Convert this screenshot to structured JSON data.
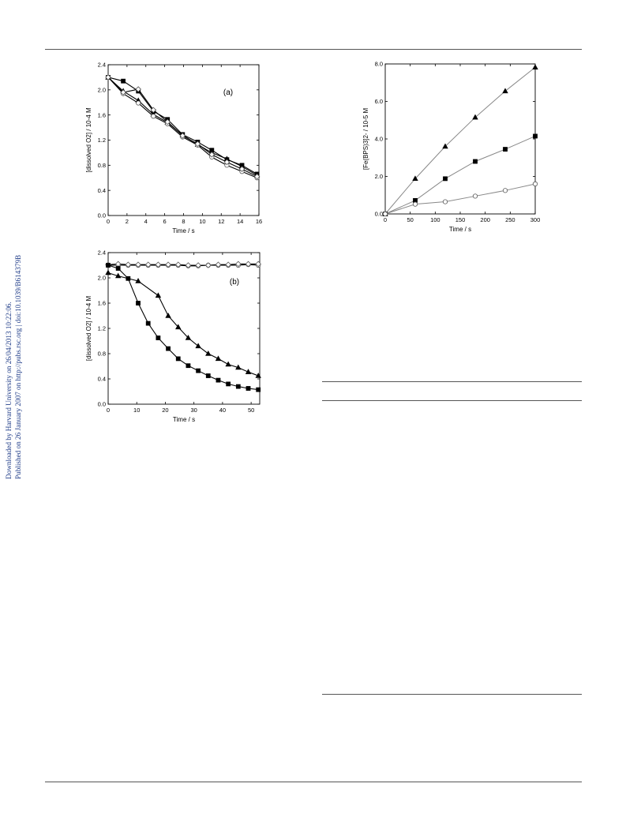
{
  "side_note": {
    "line1": "Downloaded by Harvard University on 26/04/2013 10:22:06.",
    "line2": "Published on 26 January 2007 on http://pubs.rsc.org | doi:10.1039/B614379B",
    "color": "#1f3c88"
  },
  "chart_data": [
    {
      "id": "a",
      "type": "line",
      "panel_label": "(a)",
      "xlabel": "Time / s",
      "ylabel": "[dissolved O2] / 10-4 M",
      "xlim": [
        0,
        16
      ],
      "ylim": [
        0.0,
        2.4
      ],
      "xticks": [
        0,
        2,
        4,
        6,
        8,
        10,
        12,
        14,
        16
      ],
      "yticks": [
        0.0,
        0.4,
        0.8,
        1.2,
        1.6,
        2.0,
        2.4
      ],
      "ytick_labels": [
        "0.0",
        "0.4",
        "0.8",
        "1.2",
        "1.6",
        "2.0",
        "2.4"
      ],
      "series": [
        {
          "marker": "square",
          "fill": "#000000",
          "x": [
            0,
            1.6,
            3.2,
            4.8,
            6.3,
            7.9,
            9.5,
            11.0,
            12.6,
            14.2,
            15.8
          ],
          "y": [
            2.2,
            2.14,
            1.98,
            1.66,
            1.53,
            1.29,
            1.17,
            1.04,
            0.89,
            0.8,
            0.66
          ]
        },
        {
          "marker": "triangle",
          "fill": "#000000",
          "x": [
            0,
            1.6,
            3.2,
            4.8,
            6.3,
            7.9,
            9.5,
            11.0,
            12.6,
            14.2,
            15.8
          ],
          "y": [
            2.2,
            1.98,
            1.83,
            1.61,
            1.48,
            1.28,
            1.13,
            1.0,
            0.9,
            0.78,
            0.64
          ]
        },
        {
          "marker": "circle",
          "fill": "none",
          "x": [
            0,
            1.6,
            3.2,
            4.8,
            6.3,
            7.9,
            9.5,
            11.0,
            12.6,
            14.2,
            15.8
          ],
          "y": [
            2.2,
            1.94,
            1.79,
            1.58,
            1.46,
            1.25,
            1.12,
            0.93,
            0.8,
            0.7,
            0.6
          ]
        },
        {
          "marker": "diamond",
          "fill": "none",
          "x": [
            0,
            1.6,
            3.2,
            4.8,
            6.3,
            7.9,
            9.5,
            11.0,
            12.6,
            14.2,
            15.8
          ],
          "y": [
            2.2,
            1.96,
            2.01,
            1.68,
            1.49,
            1.27,
            1.14,
            0.97,
            0.85,
            0.74,
            0.62
          ]
        }
      ]
    },
    {
      "id": "b",
      "type": "line",
      "panel_label": "(b)",
      "xlabel": "Time / s",
      "ylabel": "[dissolved O2] / 10-4 M",
      "xlim": [
        0,
        53
      ],
      "ylim": [
        0.0,
        2.4
      ],
      "xticks": [
        0,
        10,
        20,
        30,
        40,
        50
      ],
      "yticks": [
        0.0,
        0.4,
        0.8,
        1.2,
        1.6,
        2.0,
        2.4
      ],
      "ytick_labels": [
        "0.0",
        "0.4",
        "0.8",
        "1.2",
        "1.6",
        "2.0",
        "2.4"
      ],
      "series": [
        {
          "marker": "circle",
          "fill": "none",
          "x": [
            0,
            3.5,
            7,
            10.5,
            14,
            17.5,
            21,
            24.5,
            28,
            31.5,
            35,
            38.5,
            42,
            45.5,
            49,
            52.5
          ],
          "y": [
            2.2,
            2.2,
            2.2,
            2.2,
            2.2,
            2.2,
            2.2,
            2.2,
            2.19,
            2.19,
            2.2,
            2.2,
            2.2,
            2.2,
            2.21,
            2.2
          ]
        },
        {
          "marker": "diamond",
          "fill": "none",
          "x": [
            0,
            3.5,
            7,
            10.5,
            14,
            17.5,
            21,
            24.5,
            28,
            31.5,
            35,
            38.5,
            42,
            45.5,
            49,
            52.5
          ],
          "y": [
            2.21,
            2.22,
            2.21,
            2.21,
            2.21,
            2.21,
            2.21,
            2.21,
            2.2,
            2.2,
            2.2,
            2.21,
            2.21,
            2.22,
            2.22,
            2.22
          ]
        },
        {
          "marker": "triangle",
          "fill": "#000000",
          "x": [
            0,
            3.5,
            10.5,
            17.5,
            21,
            24.5,
            28,
            31.5,
            35,
            38.5,
            42,
            45.5,
            49,
            52.5
          ],
          "y": [
            2.08,
            2.03,
            1.95,
            1.72,
            1.4,
            1.22,
            1.05,
            0.92,
            0.8,
            0.72,
            0.63,
            0.58,
            0.51,
            0.45
          ]
        },
        {
          "marker": "square",
          "fill": "#000000",
          "x": [
            0,
            3.5,
            7,
            10.5,
            14,
            17.5,
            21,
            24.5,
            28,
            31.5,
            35,
            38.5,
            42,
            45.5,
            49,
            52.5
          ],
          "y": [
            2.2,
            2.15,
            1.99,
            1.6,
            1.28,
            1.05,
            0.88,
            0.72,
            0.61,
            0.53,
            0.45,
            0.38,
            0.32,
            0.28,
            0.25,
            0.23
          ]
        }
      ]
    },
    {
      "id": "c",
      "type": "line",
      "panel_label": "",
      "xlabel": "Time / s",
      "ylabel": "[Fe(BPS)3]2- / 10-5 M",
      "xlim": [
        0,
        300
      ],
      "ylim": [
        0.0,
        8.0
      ],
      "xticks": [
        0,
        50,
        100,
        150,
        200,
        250,
        300
      ],
      "yticks": [
        0.0,
        2.0,
        4.0,
        6.0,
        8.0
      ],
      "ytick_labels": [
        "0.0",
        "2.0",
        "4.0",
        "6.0",
        "8.0"
      ],
      "series": [
        {
          "marker": "triangle",
          "fill": "#000000",
          "x": [
            0,
            60,
            120,
            180,
            240,
            300
          ],
          "y": [
            0.0,
            1.88,
            3.6,
            5.15,
            6.55,
            7.82
          ]
        },
        {
          "marker": "square",
          "fill": "#000000",
          "x": [
            0,
            60,
            120,
            180,
            240,
            300
          ],
          "y": [
            0.0,
            0.72,
            1.88,
            2.8,
            3.45,
            4.15
          ]
        },
        {
          "marker": "circle",
          "fill": "none",
          "x": [
            0,
            60,
            120,
            180,
            240,
            300
          ],
          "y": [
            0.0,
            0.52,
            0.65,
            0.95,
            1.25,
            1.6
          ]
        }
      ]
    }
  ]
}
